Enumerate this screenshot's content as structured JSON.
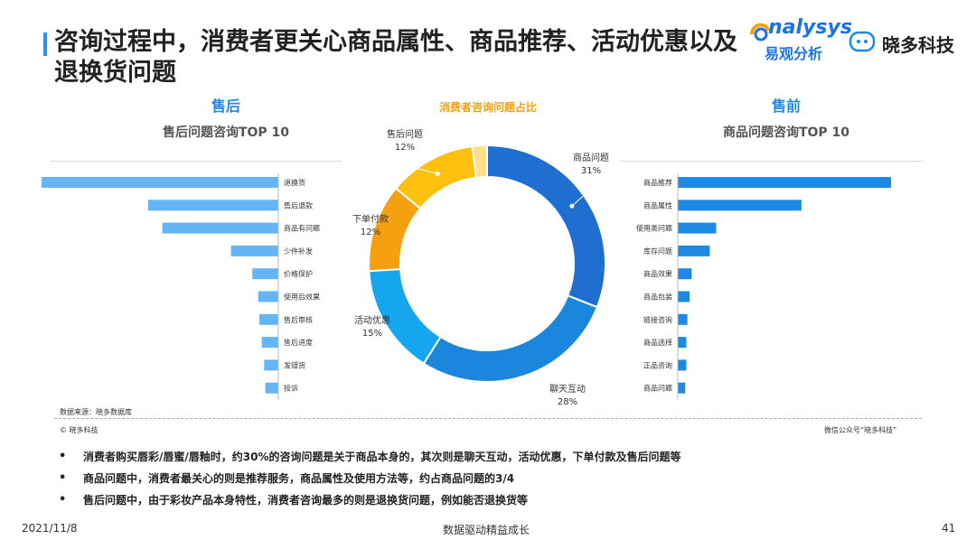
{
  "title": "咨询过程中，消费者更关心商品属性、商品推荐、活动优惠以及退换货问题",
  "brand": {
    "analysys": "nalysys",
    "analysys_cn": "易观分析",
    "xiaoduo": "晓多科技"
  },
  "left": {
    "section": "售后",
    "subtitle": "售后问题咨询TOP 10"
  },
  "right": {
    "section": "售前",
    "subtitle": "商品问题咨询TOP 10"
  },
  "center": {
    "title": "消费者咨询问题占比"
  },
  "source": "数据来源：晓多数据库",
  "copyright": "© 晓多科技",
  "wechat": "微信公众号“晓多科技”",
  "bullets": [
    "消费者购买唇彩/唇蜜/唇釉时，约30%的咨询问题是关于商品本身的，其次则是聊天互动，活动优惠，下单付款及售后问题等",
    "商品问题中，消费者最关心的则是推荐服务，商品属性及使用方法等，约占商品问题的3/4",
    "售后问题中，由于彩妆产品本身特性，消费者咨询最多的则是退换货问题，例如能否退换货等"
  ],
  "date": "2021/11/8",
  "footer_center": "数据驱动精益成长",
  "page_number": "41",
  "colors": {
    "accent": "#2196f3",
    "bar_left": "#64b5f6",
    "bar_right": "#1e88e5"
  },
  "chart_data": [
    {
      "type": "bar",
      "orientation": "horizontal",
      "subtitle": "售后问题咨询TOP 10",
      "categories": [
        "退换货",
        "售后退款",
        "商品有问题",
        "少件补发",
        "价格保护",
        "使用后效果",
        "售后审核",
        "售后进度",
        "发错货",
        "投诉"
      ],
      "values": [
        100,
        55,
        49,
        20,
        11,
        8.5,
        8,
        7,
        6,
        5.5
      ]
    },
    {
      "type": "pie",
      "title": "消费者咨询问题占比",
      "slices": [
        {
          "label": "商品问题",
          "value": 31,
          "display": "31%",
          "color": "#1e6fd0"
        },
        {
          "label": "聊天互动",
          "value": 28,
          "display": "28%",
          "color": "#1a86dd"
        },
        {
          "label": "活动优惠",
          "value": 15,
          "display": "15%",
          "color": "#16a6ef"
        },
        {
          "label": "下单付款",
          "value": 12,
          "display": "12%",
          "color": "#f5a10f"
        },
        {
          "label": "售后问题",
          "value": 12,
          "display": "12%",
          "color": "#fdc00e"
        },
        {
          "label": "",
          "value": 2,
          "display": "",
          "color": "#fde08a"
        }
      ]
    },
    {
      "type": "bar",
      "orientation": "horizontal",
      "subtitle": "商品问题咨询TOP 10",
      "categories": [
        "商品推荐",
        "商品属性",
        "使用类问题",
        "库存问题",
        "商品效果",
        "商品包装",
        "链接咨询",
        "商品选择",
        "正品咨询",
        "商品问题"
      ],
      "values": [
        100,
        58,
        18,
        15,
        6.5,
        5.5,
        4.5,
        4,
        4,
        3.5
      ]
    }
  ]
}
